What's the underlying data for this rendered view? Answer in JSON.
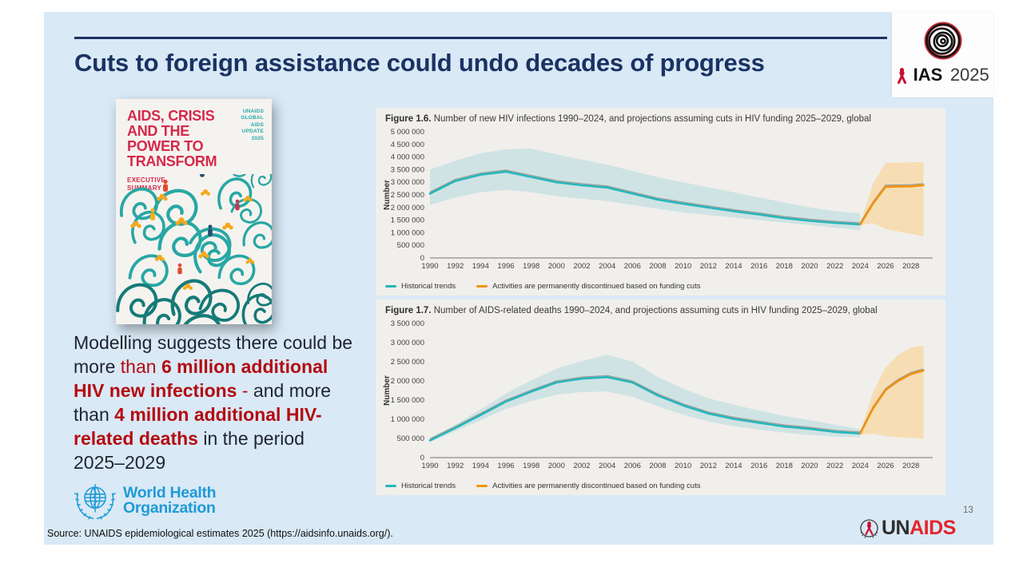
{
  "slide": {
    "title": "Cuts to foreign assistance could undo decades of progress",
    "page_number": "13",
    "source": "Source: UNAIDS epidemiological estimates 2025 (https://aidsinfo.unaids.org/)."
  },
  "ias_logo": {
    "name": "IAS",
    "year": "2025"
  },
  "book_cover": {
    "title_lines": [
      "AIDS, CRISIS",
      "AND THE",
      "POWER TO",
      "TRANSFORM"
    ],
    "subtitle_lines": [
      "EXECUTIVE",
      "SUMMARY"
    ],
    "corner_lines": [
      "UNAIDS",
      "GLOBAL",
      "AIDS",
      "UPDATE",
      "2025"
    ]
  },
  "body_text": {
    "segments": [
      {
        "text": "Modelling suggests there could be more ",
        "style": "dark"
      },
      {
        "text": "than ",
        "style": "red"
      },
      {
        "text": "6 million additional HIV new infections",
        "style": "red-bold"
      },
      {
        "text": " - ",
        "style": "red"
      },
      {
        "text": "and more than ",
        "style": "dark"
      },
      {
        "text": "4 million additional HIV-related deaths",
        "style": "red-bold"
      },
      {
        "text": " in the period 2025–2029",
        "style": "dark"
      }
    ]
  },
  "who_logo": {
    "line1": "World Health",
    "line2": "Organization"
  },
  "unaids_logo": {
    "un": "UN",
    "aids": "AIDS"
  },
  "colors": {
    "slide_background": "#d9e9f5",
    "title_navy": "#1a3263",
    "emphasis_red": "#b40a10",
    "panel_background": "#f1efeb",
    "historical_teal": "#25b6bd",
    "projection_orange": "#f0930d",
    "teal_band": "#cfe3e4",
    "orange_band": "#f7ddb4",
    "who_blue": "#1f9bd7",
    "unaids_red": "#e3252e"
  },
  "chart_data": [
    {
      "type": "line",
      "title_bold": "Figure 1.6.",
      "title_rest": " Number of new HIV infections 1990–2024, and projections assuming cuts in HIV funding 2025–2029, global",
      "xlabel": "",
      "ylabel": "Number",
      "xlim": [
        1990,
        2029.6
      ],
      "ylim": [
        0,
        5000000
      ],
      "ytick_step": 500000,
      "xticks": [
        1990,
        1992,
        1994,
        1996,
        1998,
        2000,
        2002,
        2004,
        2006,
        2008,
        2010,
        2012,
        2014,
        2016,
        2018,
        2020,
        2022,
        2024,
        2026,
        2028
      ],
      "legend": [
        "Historical trends",
        "Activities are permanently discontinued based on funding cuts"
      ],
      "bands": [
        {
          "name": "historical-uncertainty",
          "color": "#cfe3e4",
          "x": [
            1990,
            1992,
            1994,
            1996,
            1998,
            2000,
            2002,
            2004,
            2006,
            2008,
            2010,
            2012,
            2014,
            2016,
            2018,
            2020,
            2022,
            2024
          ],
          "upper": [
            3500000,
            3850000,
            4150000,
            4300000,
            4340000,
            4100000,
            3900000,
            3700000,
            3450000,
            3200000,
            3000000,
            2800000,
            2600000,
            2400000,
            2200000,
            2000000,
            1860000,
            1760000
          ],
          "lower": [
            2100000,
            2400000,
            2600000,
            2700000,
            2600000,
            2450000,
            2350000,
            2250000,
            2100000,
            1950000,
            1800000,
            1700000,
            1600000,
            1500000,
            1400000,
            1300000,
            1200000,
            1100000
          ]
        },
        {
          "name": "projection-uncertainty",
          "color": "#f7ddb4",
          "x": [
            2024,
            2025,
            2026,
            2027,
            2028,
            2029
          ],
          "upper": [
            1360000,
            2950000,
            3760000,
            3780000,
            3790000,
            3800000
          ],
          "lower": [
            1300000,
            1380000,
            1150000,
            1050000,
            950000,
            850000
          ]
        }
      ],
      "series": [
        {
          "name": "Historical trends",
          "color": "#25b6bd",
          "x": [
            1990,
            1992,
            1994,
            1996,
            1998,
            2000,
            2002,
            2004,
            2006,
            2008,
            2010,
            2012,
            2014,
            2016,
            2018,
            2020,
            2022,
            2024
          ],
          "values": [
            2550000,
            3050000,
            3300000,
            3420000,
            3210000,
            3000000,
            2880000,
            2790000,
            2550000,
            2310000,
            2150000,
            2000000,
            1850000,
            1720000,
            1580000,
            1470000,
            1390000,
            1330000
          ]
        },
        {
          "name": "Activities are permanently discontinued based on funding cuts",
          "color": "#f0930d",
          "x": [
            2024,
            2025,
            2026,
            2027,
            2028,
            2029
          ],
          "values": [
            1330000,
            2150000,
            2820000,
            2830000,
            2840000,
            2880000
          ]
        }
      ]
    },
    {
      "type": "line",
      "title_bold": "Figure 1.7.",
      "title_rest": " Number of AIDS-related deaths 1990–2024, and projections assuming cuts in HIV funding 2025–2029, global",
      "xlabel": "",
      "ylabel": "Number",
      "xlim": [
        1990,
        2029.6
      ],
      "ylim": [
        0,
        3500000
      ],
      "ytick_step": 500000,
      "xticks": [
        1990,
        1992,
        1994,
        1996,
        1998,
        2000,
        2002,
        2004,
        2006,
        2008,
        2010,
        2012,
        2014,
        2016,
        2018,
        2020,
        2022,
        2024,
        2026,
        2028
      ],
      "legend": [
        "Historical trends",
        "Activities are permanently discontinued based on funding cuts"
      ],
      "bands": [
        {
          "name": "historical-uncertainty",
          "color": "#cfe3e4",
          "x": [
            1990,
            1992,
            1994,
            1996,
            1998,
            2000,
            2002,
            2004,
            2006,
            2008,
            2010,
            2012,
            2014,
            2016,
            2018,
            2020,
            2022,
            2024
          ],
          "upper": [
            500000,
            860000,
            1260000,
            1670000,
            2010000,
            2320000,
            2520000,
            2680000,
            2510000,
            2110000,
            1800000,
            1550000,
            1380000,
            1230000,
            1090000,
            980000,
            860000,
            740000
          ],
          "lower": [
            400000,
            690000,
            970000,
            1270000,
            1470000,
            1640000,
            1710000,
            1720000,
            1590000,
            1340000,
            1120000,
            940000,
            820000,
            730000,
            650000,
            590000,
            550000,
            530000
          ]
        },
        {
          "name": "projection-uncertainty",
          "color": "#f7ddb4",
          "x": [
            2024,
            2025,
            2026,
            2027,
            2028,
            2029
          ],
          "upper": [
            660000,
            1700000,
            2350000,
            2680000,
            2870000,
            2920000
          ],
          "lower": [
            600000,
            620000,
            560000,
            530000,
            510000,
            500000
          ]
        }
      ],
      "series": [
        {
          "name": "Historical trends",
          "color": "#25b6bd",
          "x": [
            1990,
            1992,
            1994,
            1996,
            1998,
            2000,
            2002,
            2004,
            2006,
            2008,
            2010,
            2012,
            2014,
            2016,
            2018,
            2020,
            2022,
            2024
          ],
          "values": [
            450000,
            770000,
            1110000,
            1460000,
            1720000,
            1960000,
            2060000,
            2100000,
            1960000,
            1620000,
            1360000,
            1150000,
            1010000,
            910000,
            810000,
            750000,
            670000,
            630000
          ]
        },
        {
          "name": "Activities are permanently discontinued based on funding cuts",
          "color": "#f0930d",
          "x": [
            2024,
            2025,
            2026,
            2027,
            2028,
            2029
          ],
          "values": [
            630000,
            1280000,
            1760000,
            2000000,
            2180000,
            2270000
          ]
        }
      ]
    }
  ]
}
